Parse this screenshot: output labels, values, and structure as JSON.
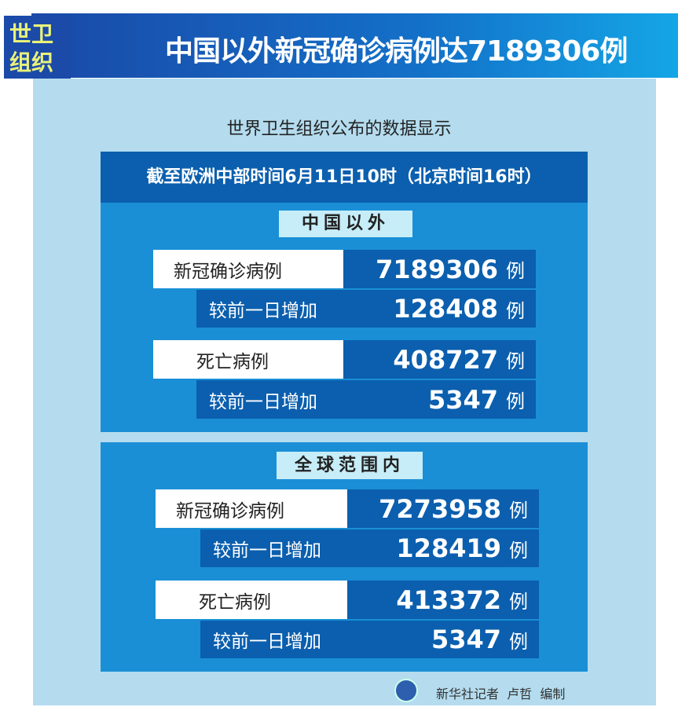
{
  "header": {
    "badge": "世卫组织",
    "title": "中国以外新冠确诊病例达7189306例"
  },
  "subtitle": "世界卫生组织公布的数据显示",
  "time_note": "截至欧洲中部时间6月11日10时（北京时间16时）",
  "sections": [
    {
      "label": "中国以外",
      "confirmed_label": "新冠确诊病例",
      "confirmed": "7189306",
      "confirmed_increase_label": "较前一日增加",
      "confirmed_increase": "128408",
      "deaths_label": "死亡病例",
      "deaths": "408727",
      "deaths_increase_label": "较前一日增加",
      "deaths_increase": "5347"
    },
    {
      "label": "全球范围内",
      "confirmed_label": "新冠确诊病例",
      "confirmed": "7273958",
      "confirmed_increase_label": "较前一日增加",
      "confirmed_increase": "128419",
      "deaths_label": "死亡病例",
      "deaths": "413372",
      "deaths_increase_label": "较前一日增加",
      "deaths_increase": "5347"
    }
  ],
  "unit": "例",
  "credit": "新华社记者  卢哲  编制",
  "colors": {
    "panel": "#b4dcee",
    "dark_blue": "#0b5fae",
    "section_blue": "#1a8fd6",
    "badge_text": "#e9f27a"
  }
}
